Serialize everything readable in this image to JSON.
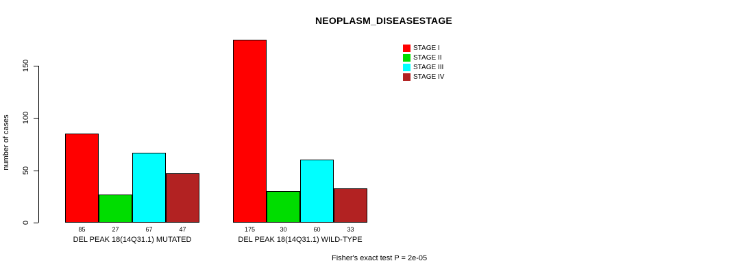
{
  "title": "NEOPLASM_DISEASESTAGE",
  "ylabel": "number of cases",
  "footer": "Fisher's exact test P = 2e-05",
  "colors": {
    "stage1": "#ff0000",
    "stage2": "#00dd00",
    "stage3": "#00ffff",
    "stage4": "#b22222",
    "axis": "#000000"
  },
  "chart_data": {
    "type": "bar",
    "title": "NEOPLASM_DISEASESTAGE",
    "ylabel": "number of cases",
    "xlabel": "",
    "categories": [
      "DEL PEAK 18(14Q31.1) MUTATED",
      "DEL PEAK 18(14Q31.1) WILD-TYPE"
    ],
    "series": [
      {
        "name": "STAGE I",
        "color": "#ff0000",
        "values": [
          85,
          175
        ]
      },
      {
        "name": "STAGE II",
        "color": "#00dd00",
        "values": [
          27,
          30
        ]
      },
      {
        "name": "STAGE III",
        "color": "#00ffff",
        "values": [
          67,
          60
        ]
      },
      {
        "name": "STAGE IV",
        "color": "#b22222",
        "values": [
          47,
          33
        ]
      }
    ],
    "yticks": [
      0,
      50,
      100,
      150
    ],
    "ylim": [
      0,
      175
    ],
    "grid": false,
    "legend_position": "top-right",
    "annotation": "Fisher's exact test P = 2e-05"
  }
}
